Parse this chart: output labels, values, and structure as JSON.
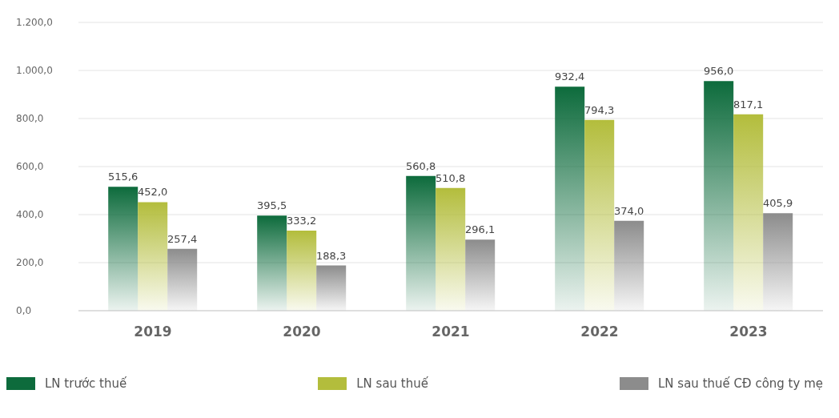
{
  "chart_data": {
    "type": "bar",
    "categories": [
      "2019",
      "2020",
      "2021",
      "2022",
      "2023"
    ],
    "series": [
      {
        "name": "LN trước thuế",
        "color": "#0d6b3c",
        "values": [
          515.6,
          395.5,
          560.8,
          932.4,
          956.0
        ],
        "value_labels": [
          "515,6",
          "395,5",
          "560,8",
          "932,4",
          "956,0"
        ]
      },
      {
        "name": "LN sau thuế",
        "color": "#b3bd3c",
        "values": [
          452.0,
          333.2,
          510.8,
          794.3,
          817.1
        ],
        "value_labels": [
          "452,0",
          "333,2",
          "510,8",
          "794,3",
          "817,1"
        ]
      },
      {
        "name": "LN sau thuế CĐ công ty mẹ",
        "color": "#8c8c8c",
        "values": [
          257.4,
          188.3,
          296.1,
          374.0,
          405.9
        ],
        "value_labels": [
          "257,4",
          "188,3",
          "296,1",
          "374,0",
          "405,9"
        ]
      }
    ],
    "ylim": [
      0,
      1200
    ],
    "yticks": [
      {
        "value": 0,
        "label": "0,0"
      },
      {
        "value": 200,
        "label": "200,0"
      },
      {
        "value": 400,
        "label": "400,0"
      },
      {
        "value": 600,
        "label": "600,0"
      },
      {
        "value": 800,
        "label": "800,0"
      },
      {
        "value": 1000,
        "label": "1.000,0"
      },
      {
        "value": 1200,
        "label": "1.200,0"
      }
    ],
    "grid": "y",
    "legend": "bottom"
  }
}
